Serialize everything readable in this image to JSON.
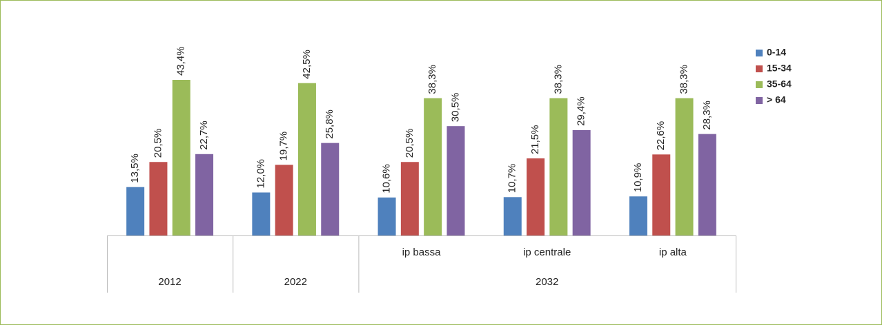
{
  "chart_data": {
    "type": "bar",
    "categories": [
      null,
      null,
      "ip bassa",
      "ip centrale",
      "ip alta"
    ],
    "groups": [
      "2012",
      "2022",
      "2032",
      "2032",
      "2032"
    ],
    "legend": "right",
    "series": [
      {
        "name": "0-14",
        "color": "#4f81bd",
        "values": [
          13.5,
          12.0,
          10.6,
          10.7,
          10.9
        ],
        "value_labels": [
          "13,5%",
          "12,0%",
          "10,6%",
          "10,7%",
          "10,9%"
        ]
      },
      {
        "name": "15-34",
        "color": "#c0504d",
        "values": [
          20.5,
          19.7,
          20.5,
          21.5,
          22.6
        ],
        "value_labels": [
          "20,5%",
          "19,7%",
          "20,5%",
          "21,5%",
          "22,6%"
        ]
      },
      {
        "name": "35-64",
        "color": "#9bbb59",
        "values": [
          43.4,
          42.5,
          38.3,
          38.3,
          38.3
        ],
        "value_labels": [
          "43,4%",
          "42,5%",
          "38,3%",
          "38,3%",
          "38,3%"
        ]
      },
      {
        "name": "> 64",
        "color": "#8064a2",
        "values": [
          22.7,
          25.8,
          30.5,
          29.4,
          28.3
        ],
        "value_labels": [
          "22,7%",
          "25,8%",
          "30,5%",
          "29,4%",
          "28,3%"
        ]
      }
    ]
  }
}
